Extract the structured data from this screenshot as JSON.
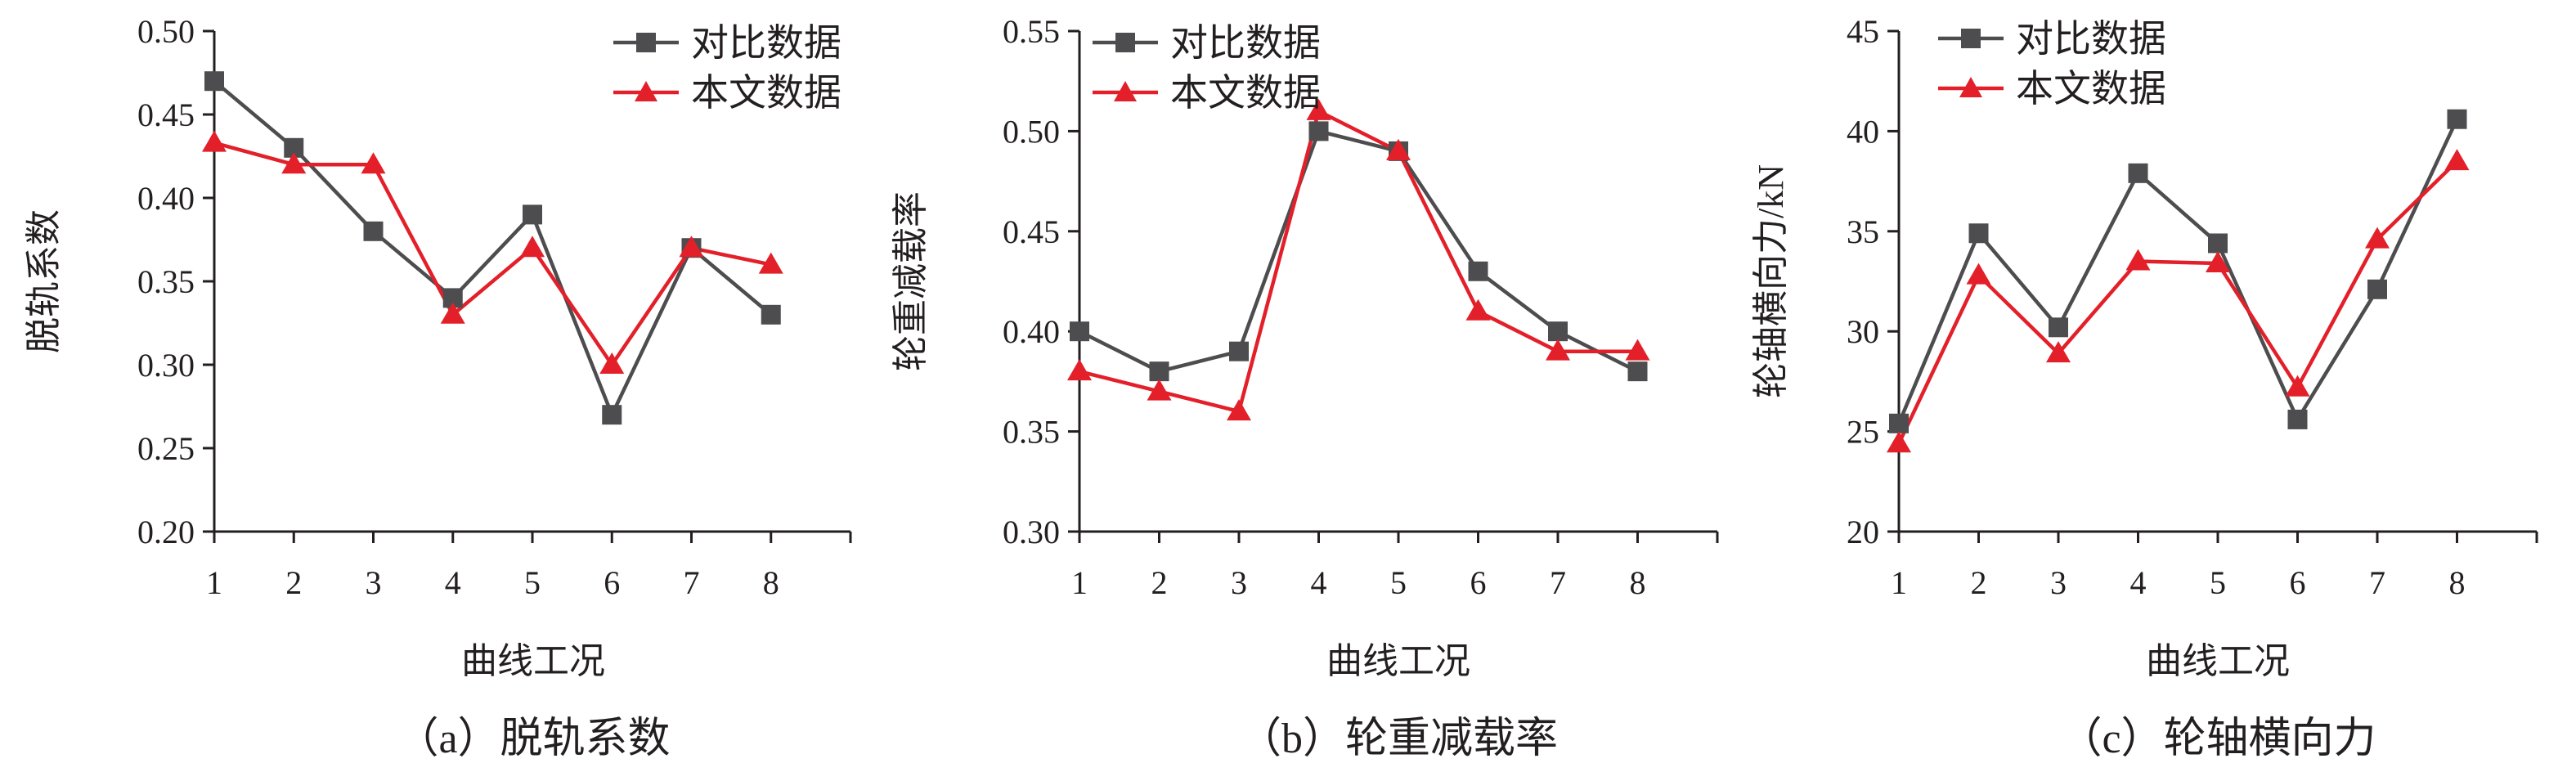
{
  "colors": {
    "comparison": "#4d4d4f",
    "proposed": "#e3202a",
    "axis": "#231f20",
    "text": "#231f20"
  },
  "legend": {
    "comparison_label": "对比数据",
    "proposed_label": "本文数据",
    "comparison_marker": "square",
    "proposed_marker": "triangle",
    "placement": "top-right"
  },
  "chart_data": [
    {
      "id": "a",
      "type": "line",
      "caption": "（a）脱轨系数",
      "xlabel": "曲线工况",
      "ylabel": "脱轨系数",
      "x": [
        1,
        2,
        3,
        4,
        5,
        6,
        7,
        8
      ],
      "ylim": [
        0.2,
        0.5
      ],
      "yticks": [
        "0.20",
        "0.25",
        "0.30",
        "0.35",
        "0.40",
        "0.45",
        "0.50"
      ],
      "series": [
        {
          "name": "对比数据",
          "values": [
            0.47,
            0.43,
            0.38,
            0.34,
            0.39,
            0.27,
            0.37,
            0.33
          ]
        },
        {
          "name": "本文数据",
          "values": [
            0.433,
            0.42,
            0.42,
            0.33,
            0.37,
            0.3,
            0.37,
            0.36
          ]
        }
      ]
    },
    {
      "id": "b",
      "type": "line",
      "caption": "（b）轮重减载率",
      "xlabel": "曲线工况",
      "ylabel": "轮重减载率",
      "x": [
        1,
        2,
        3,
        4,
        5,
        6,
        7,
        8
      ],
      "ylim": [
        0.3,
        0.55
      ],
      "yticks": [
        "0.30",
        "0.35",
        "0.40",
        "0.45",
        "0.50",
        "0.55"
      ],
      "series": [
        {
          "name": "对比数据",
          "values": [
            0.4,
            0.38,
            0.39,
            0.5,
            0.49,
            0.43,
            0.4,
            0.38
          ]
        },
        {
          "name": "本文数据",
          "values": [
            0.38,
            0.37,
            0.36,
            0.51,
            0.49,
            0.41,
            0.39,
            0.39
          ]
        }
      ]
    },
    {
      "id": "c",
      "type": "line",
      "caption": "（c）轮轴横向力",
      "xlabel": "曲线工况",
      "ylabel": "轮轴横向力/kN",
      "x": [
        1,
        2,
        3,
        4,
        5,
        6,
        7,
        8
      ],
      "ylim": [
        20,
        45
      ],
      "yticks": [
        "20",
        "25",
        "30",
        "35",
        "40",
        "45"
      ],
      "series": [
        {
          "name": "对比数据",
          "values": [
            25.4,
            34.9,
            30.2,
            37.9,
            34.4,
            25.6,
            32.1,
            40.6
          ]
        },
        {
          "name": "本文数据",
          "values": [
            24.4,
            32.8,
            28.9,
            33.5,
            33.4,
            27.2,
            34.6,
            38.5
          ]
        }
      ]
    }
  ]
}
